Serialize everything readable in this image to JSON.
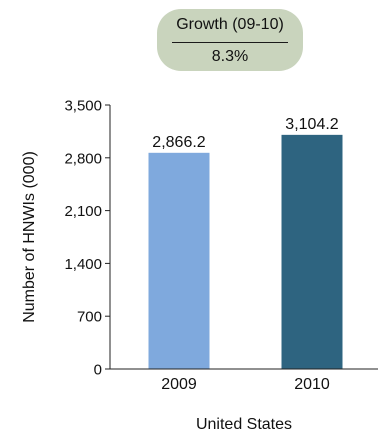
{
  "growth_box": {
    "label": "Growth (09-10)",
    "value": "8.3%"
  },
  "chart_data": {
    "type": "bar",
    "categories": [
      "2009",
      "2010"
    ],
    "values": [
      2866.2,
      3104.2
    ],
    "value_labels": [
      "2,866.2",
      "3,104.2"
    ],
    "bar_colors": [
      "#7fa9dd",
      "#2e6480"
    ],
    "ylabel": "Number of HNWIs (000)",
    "xlabel": "United States",
    "ylim": [
      0,
      3500
    ],
    "yticks": [
      0,
      700,
      1400,
      2100,
      2800,
      3500
    ],
    "ytick_labels": [
      "0",
      "700",
      "1,400",
      "2,100",
      "2,800",
      "3,500"
    ],
    "grid": false,
    "legend": "none"
  }
}
